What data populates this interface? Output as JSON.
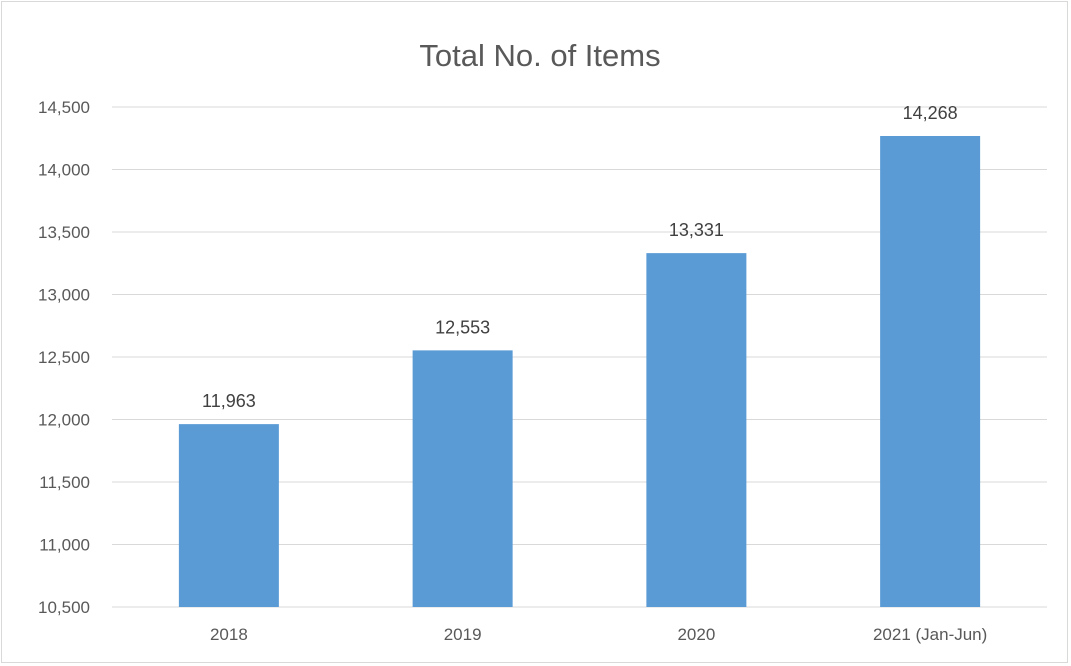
{
  "chart_data": {
    "type": "bar",
    "title": "Total No. of Items",
    "xlabel": "",
    "ylabel": "",
    "categories": [
      "2018",
      "2019",
      "2020",
      "2021 (Jan-Jun)"
    ],
    "values": [
      11963,
      12553,
      13331,
      14268
    ],
    "data_labels": [
      "11,963",
      "12,553",
      "13,331",
      "14,268"
    ],
    "ylim": [
      10500,
      14500
    ],
    "yticks": [
      10500,
      11000,
      11500,
      12000,
      12500,
      13000,
      13500,
      14000,
      14500
    ],
    "ytick_labels": [
      "10,500",
      "11,000",
      "11,500",
      "12,000",
      "12,500",
      "13,000",
      "13,500",
      "14,000",
      "14,500"
    ],
    "grid": true,
    "legend": "none",
    "bar_color": "#5b9bd5",
    "grid_color": "#d9d9d9"
  }
}
